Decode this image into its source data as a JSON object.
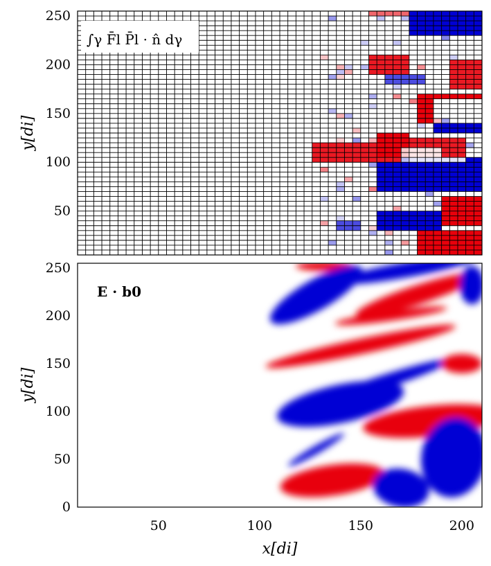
{
  "chart_data": [
    {
      "type": "heatmap",
      "panel": "top",
      "annotation": "∫γ F̄l P̄l · n̂ dγ",
      "ylabel": "y[di]",
      "xlim": [
        10,
        210
      ],
      "ylim": [
        5,
        255
      ],
      "yticks": [
        50,
        100,
        150,
        200,
        250
      ],
      "xticks": [],
      "grid": true,
      "grid_cells_x": 50,
      "grid_cells_y": 50,
      "colors": {
        "positive": "#e8000b",
        "negative": "#0000d4",
        "zero": "#ffffff"
      },
      "regions": [
        {
          "sign": 1,
          "x": [
            156,
            174
          ],
          "y": [
            248,
            255
          ],
          "strength": 0.6
        },
        {
          "sign": -1,
          "x": [
            176,
            208
          ],
          "y": [
            232,
            255
          ],
          "strength": 1.0
        },
        {
          "sign": 1,
          "x": [
            155,
            175
          ],
          "y": [
            192,
            208
          ],
          "strength": 0.9
        },
        {
          "sign": -1,
          "x": [
            163,
            180
          ],
          "y": [
            180,
            192
          ],
          "strength": 0.7
        },
        {
          "sign": 1,
          "x": [
            196,
            210
          ],
          "y": [
            176,
            204
          ],
          "strength": 0.9
        },
        {
          "sign": 1,
          "x": [
            178,
            210
          ],
          "y": [
            140,
            168
          ],
          "strength": 1.0
        },
        {
          "sign": -1,
          "x": [
            186,
            210
          ],
          "y": [
            128,
            164
          ],
          "strength": 1.0
        },
        {
          "sign": 1,
          "x": [
            128,
            168
          ],
          "y": [
            100,
            118
          ],
          "strength": 0.9
        },
        {
          "sign": 1,
          "x": [
            160,
            172
          ],
          "y": [
            100,
            128
          ],
          "strength": 1.0
        },
        {
          "sign": 1,
          "x": [
            176,
            200
          ],
          "y": [
            100,
            124
          ],
          "strength": 0.9
        },
        {
          "sign": -1,
          "x": [
            160,
            210
          ],
          "y": [
            72,
            104
          ],
          "strength": 1.0
        },
        {
          "sign": -1,
          "x": [
            172,
            188
          ],
          "y": [
            104,
            116
          ],
          "strength": 0.8
        },
        {
          "sign": 1,
          "x": [
            192,
            210
          ],
          "y": [
            36,
            64
          ],
          "strength": 1.0
        },
        {
          "sign": -1,
          "x": [
            160,
            188
          ],
          "y": [
            32,
            48
          ],
          "strength": 1.0
        },
        {
          "sign": 1,
          "x": [
            178,
            208
          ],
          "y": [
            5,
            32
          ],
          "strength": 1.0
        },
        {
          "sign": -1,
          "x": [
            140,
            150
          ],
          "y": [
            32,
            40
          ],
          "strength": 0.7
        }
      ]
    },
    {
      "type": "heatmap",
      "panel": "bottom",
      "annotation": "E · b0",
      "xlabel": "x[di]",
      "ylabel": "y[di]",
      "xlim": [
        10,
        210
      ],
      "ylim": [
        0,
        255
      ],
      "xticks": [
        50,
        100,
        150,
        200
      ],
      "yticks": [
        0,
        50,
        100,
        150,
        200,
        250
      ],
      "grid": false,
      "colors": {
        "positive": "#e8000b",
        "negative": "#0000d4",
        "zero": "#ffffff"
      },
      "features": [
        {
          "sign": 1,
          "cx": 132,
          "cy": 252,
          "rx": 14,
          "ry": 5,
          "angle": 0
        },
        {
          "sign": -1,
          "cx": 172,
          "cy": 248,
          "rx": 36,
          "ry": 8,
          "angle": 10
        },
        {
          "sign": -1,
          "cx": 128,
          "cy": 222,
          "rx": 26,
          "ry": 16,
          "angle": 30
        },
        {
          "sign": 1,
          "cx": 178,
          "cy": 222,
          "rx": 32,
          "ry": 10,
          "angle": 18
        },
        {
          "sign": 1,
          "cx": 165,
          "cy": 200,
          "rx": 28,
          "ry": 5,
          "angle": 8
        },
        {
          "sign": 1,
          "cx": 150,
          "cy": 168,
          "rx": 48,
          "ry": 8,
          "angle": 12
        },
        {
          "sign": -1,
          "cx": 140,
          "cy": 108,
          "rx": 32,
          "ry": 20,
          "angle": 12
        },
        {
          "sign": -1,
          "cx": 160,
          "cy": 130,
          "rx": 36,
          "ry": 7,
          "angle": 18
        },
        {
          "sign": 1,
          "cx": 185,
          "cy": 90,
          "rx": 34,
          "ry": 16,
          "angle": 6
        },
        {
          "sign": -1,
          "cx": 196,
          "cy": 52,
          "rx": 16,
          "ry": 42,
          "angle": -10
        },
        {
          "sign": 1,
          "cx": 136,
          "cy": 28,
          "rx": 26,
          "ry": 16,
          "angle": 8
        },
        {
          "sign": -1,
          "cx": 170,
          "cy": 20,
          "rx": 14,
          "ry": 20,
          "angle": -10
        },
        {
          "sign": 1,
          "cx": 200,
          "cy": 150,
          "rx": 10,
          "ry": 10,
          "angle": 0
        },
        {
          "sign": -1,
          "cx": 205,
          "cy": 232,
          "rx": 6,
          "ry": 20,
          "angle": 0
        },
        {
          "sign": -1,
          "cx": 128,
          "cy": 60,
          "rx": 16,
          "ry": 4,
          "angle": 30
        }
      ]
    }
  ]
}
